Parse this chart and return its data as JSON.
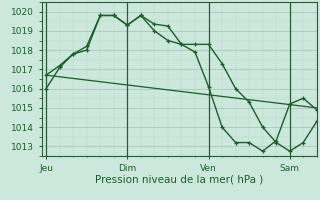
{
  "background_color": "#cce8dc",
  "grid_color_major": "#aac8b8",
  "grid_color_minor": "#bbdacc",
  "line_color": "#1a5e2a",
  "title": "Pression niveau de la mer( hPa )",
  "x_ticks_labels": [
    "Jeu",
    "Dim",
    "Ven",
    "Sam"
  ],
  "x_ticks_pos": [
    0,
    36,
    72,
    108
  ],
  "xlim": [
    -2,
    120
  ],
  "ylim": [
    1012.5,
    1020.5
  ],
  "yticks": [
    1013,
    1014,
    1015,
    1016,
    1017,
    1018,
    1019,
    1020
  ],
  "series1_x": [
    0,
    6,
    12,
    18,
    24,
    30,
    36,
    42,
    48,
    54,
    60,
    66,
    72,
    78,
    84,
    90,
    96,
    102,
    108,
    114,
    120
  ],
  "series1_y": [
    1016.7,
    1017.2,
    1017.8,
    1018.2,
    1019.8,
    1019.8,
    1019.3,
    1019.8,
    1019.35,
    1019.25,
    1018.3,
    1018.3,
    1018.3,
    1017.3,
    1016.0,
    1015.3,
    1014.0,
    1013.2,
    1012.75,
    1013.2,
    1014.3
  ],
  "series2_x": [
    0,
    6,
    12,
    18,
    24,
    30,
    36,
    42,
    48,
    54,
    60,
    66,
    72,
    78,
    84,
    90,
    96,
    102,
    108,
    114,
    120
  ],
  "series2_y": [
    1016.0,
    1017.1,
    1017.8,
    1018.0,
    1019.8,
    1019.8,
    1019.3,
    1019.8,
    1019.0,
    1018.5,
    1018.3,
    1017.9,
    1016.1,
    1014.0,
    1013.2,
    1013.2,
    1012.75,
    1013.3,
    1015.2,
    1015.5,
    1014.9
  ],
  "series3_x": [
    0,
    120
  ],
  "series3_y": [
    1016.7,
    1015.0
  ],
  "vlines_x": [
    0,
    36,
    72,
    108
  ],
  "figsize": [
    3.2,
    2.0
  ],
  "dpi": 100
}
